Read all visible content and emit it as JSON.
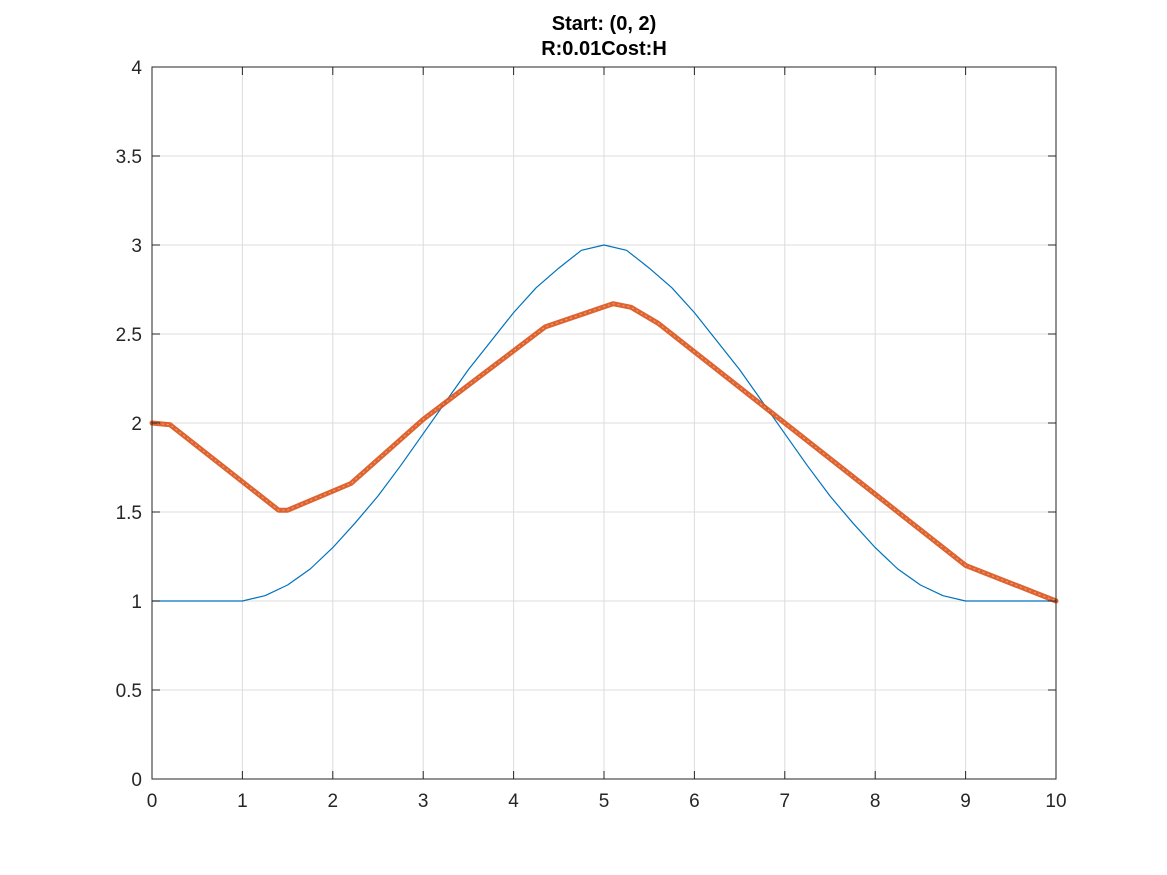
{
  "chart_data": {
    "type": "line",
    "title": [
      "Start: (0, 2)",
      "R:0.01Cost:H"
    ],
    "xlabel": "",
    "ylabel": "",
    "xlim": [
      0,
      10
    ],
    "ylim": [
      0,
      4
    ],
    "xticks": [
      0,
      1,
      2,
      3,
      4,
      5,
      6,
      7,
      8,
      9,
      10
    ],
    "xtick_labels": [
      "0",
      "1",
      "2",
      "3",
      "4",
      "5",
      "6",
      "7",
      "8",
      "9",
      "10"
    ],
    "yticks": [
      0,
      0.5,
      1,
      1.5,
      2,
      2.5,
      3,
      3.5,
      4
    ],
    "ytick_labels": [
      "0",
      "0.5",
      "1",
      "1.5",
      "2",
      "2.5",
      "3",
      "3.5",
      "4"
    ],
    "grid": true,
    "legend": "none",
    "series": [
      {
        "color": "#0072BD",
        "style": "thin-line",
        "x": [
          0,
          1,
          1.25,
          1.5,
          1.75,
          2,
          2.25,
          2.5,
          2.75,
          3,
          3.25,
          3.5,
          3.75,
          4,
          4.25,
          4.5,
          4.75,
          5,
          5.25,
          5.5,
          5.75,
          6,
          6.25,
          6.5,
          6.75,
          7,
          7.25,
          7.5,
          7.75,
          8,
          8.25,
          8.5,
          8.75,
          9,
          10
        ],
        "y": [
          1,
          1,
          1.03,
          1.09,
          1.18,
          1.3,
          1.44,
          1.59,
          1.76,
          1.94,
          2.12,
          2.3,
          2.46,
          2.62,
          2.76,
          2.87,
          2.97,
          3,
          2.97,
          2.87,
          2.76,
          2.62,
          2.46,
          2.3,
          2.12,
          1.94,
          1.76,
          1.59,
          1.44,
          1.3,
          1.18,
          1.09,
          1.03,
          1,
          1
        ]
      },
      {
        "color": "#D95319",
        "style": "thick-trajectory",
        "x": [
          0,
          0.2,
          1.4,
          1.5,
          2.2,
          3.0,
          4.35,
          5.1,
          5.3,
          5.6,
          7.0,
          9.0,
          10.0
        ],
        "y": [
          2,
          1.99,
          1.51,
          1.51,
          1.66,
          2.02,
          2.54,
          2.67,
          2.65,
          2.56,
          2.0,
          1.2,
          1.0
        ]
      }
    ]
  }
}
